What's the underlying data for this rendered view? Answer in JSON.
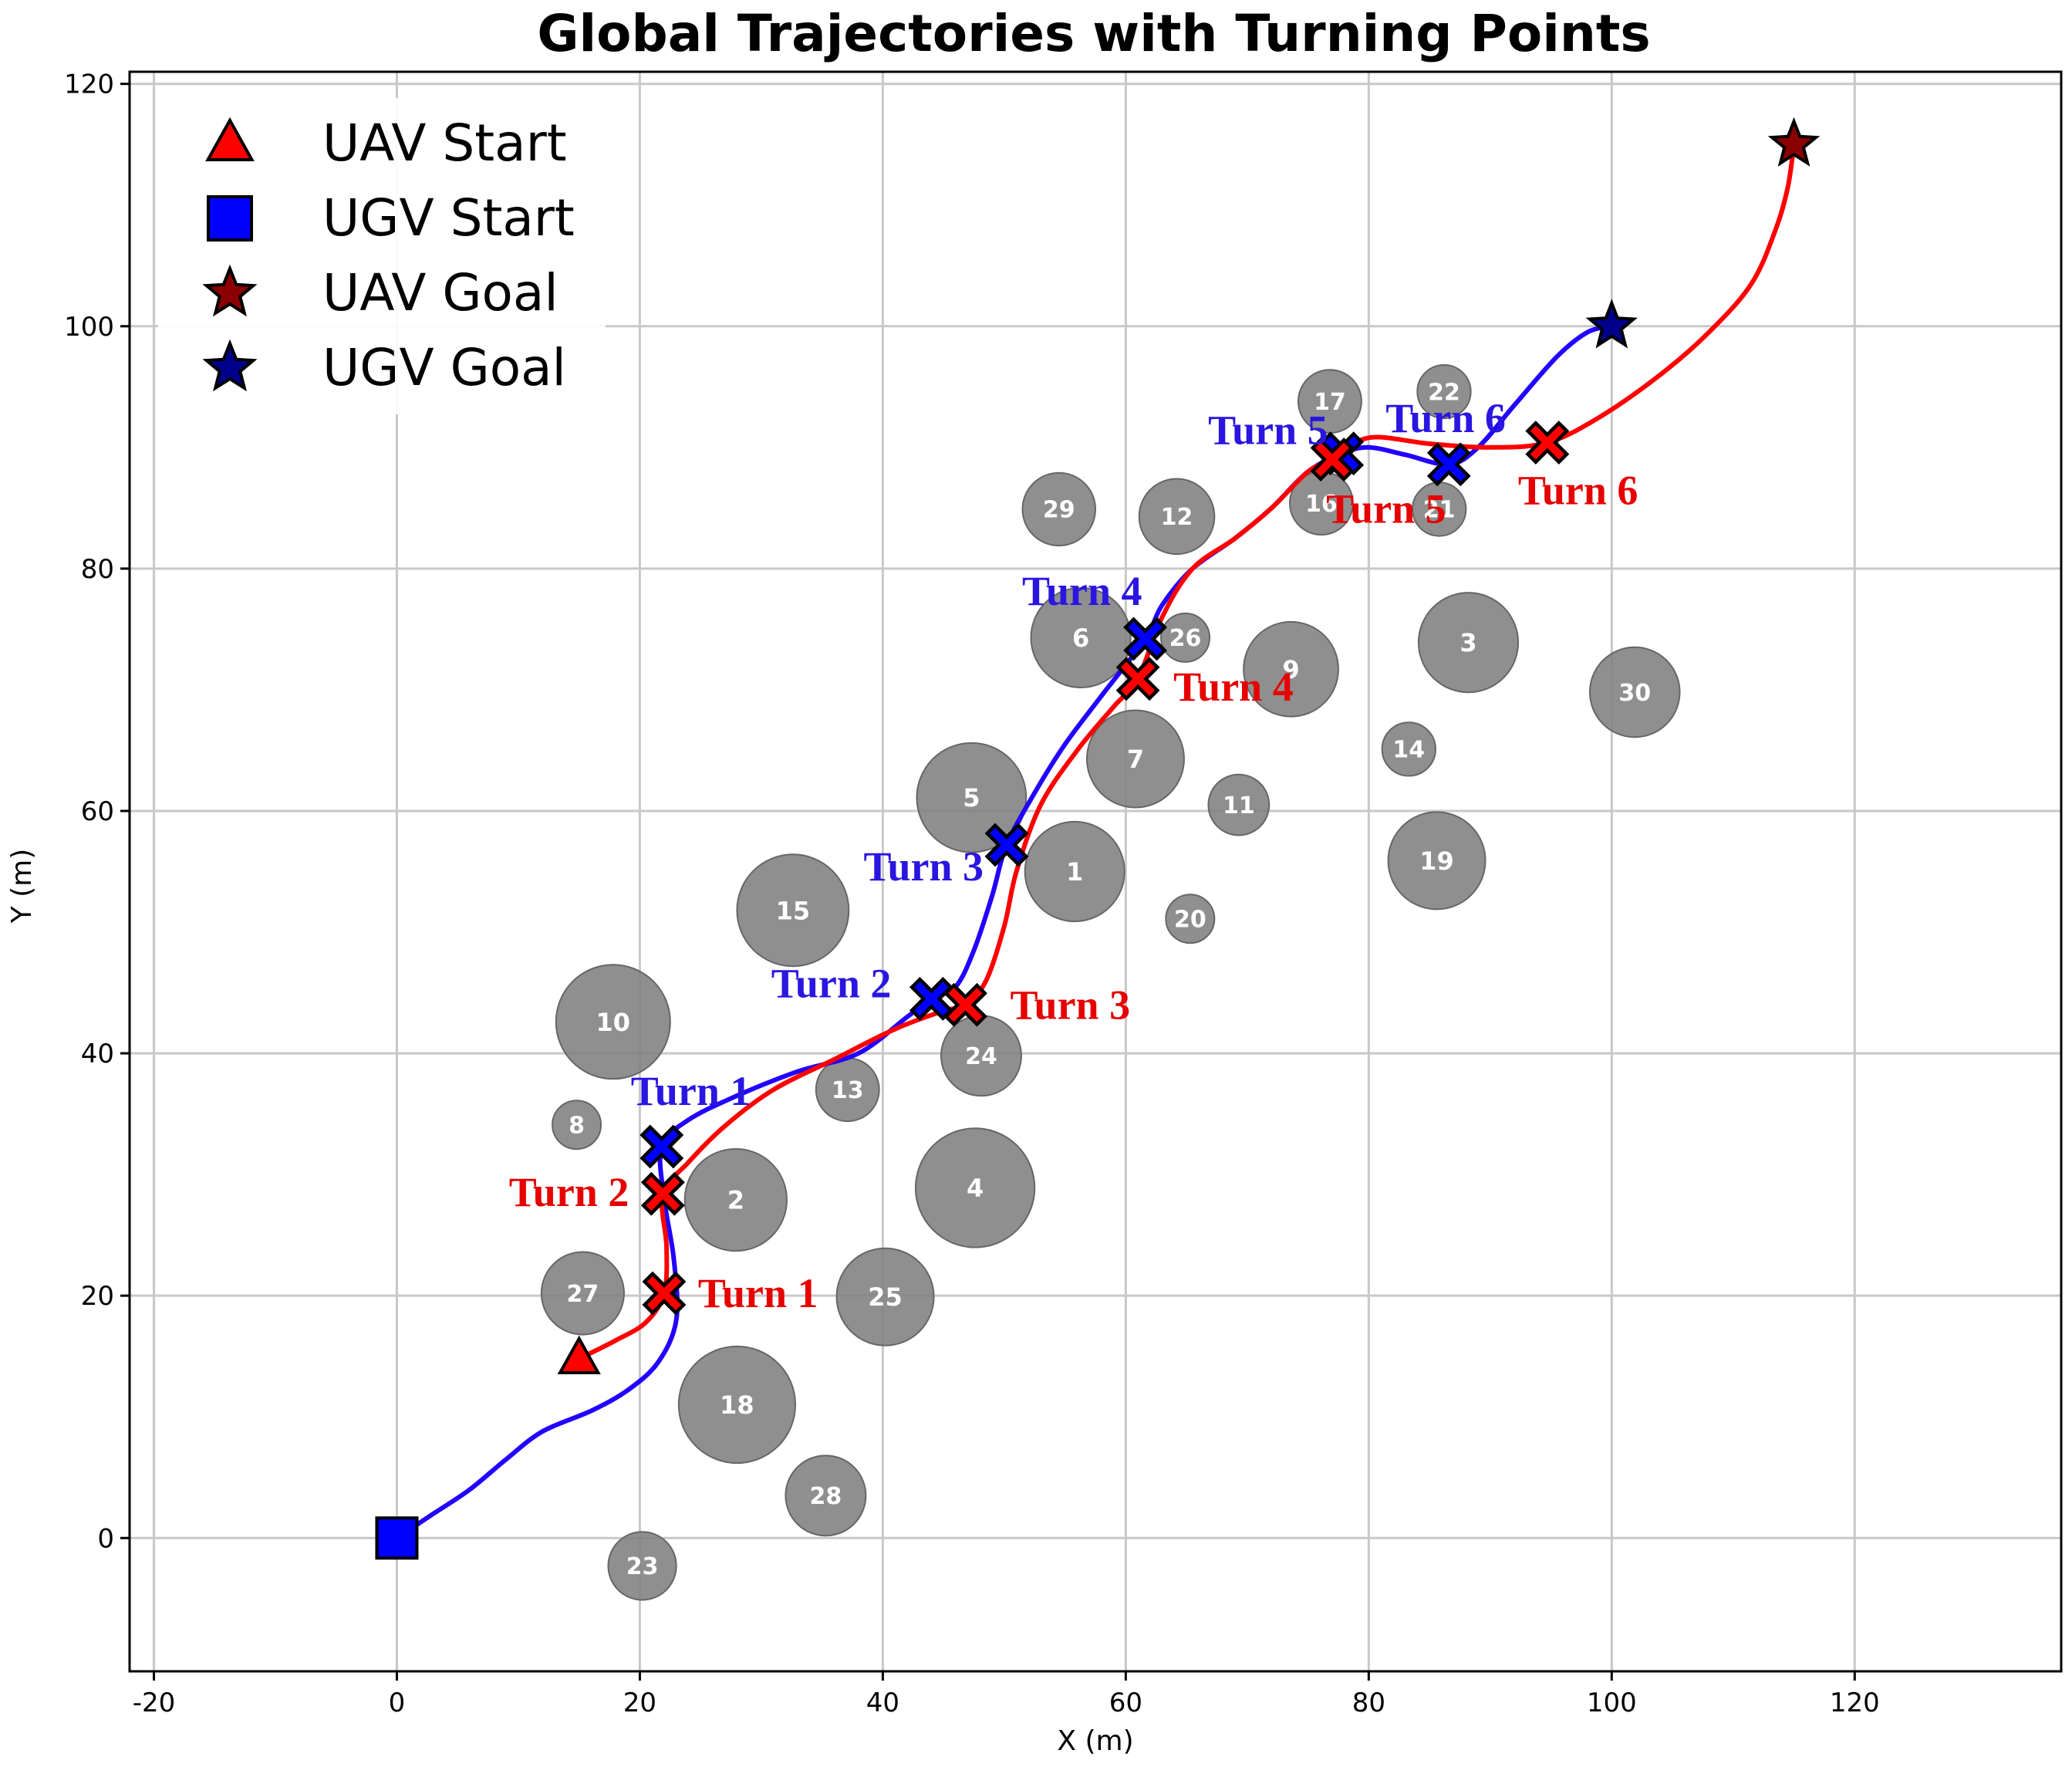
{
  "chart_data": {
    "type": "scatter",
    "title": "Global Trajectories with Turning Points",
    "xlabel": "X (m)",
    "ylabel": "Y (m)",
    "xlim": [
      -22,
      137
    ],
    "ylim": [
      -11,
      121
    ],
    "xticks": [
      -20,
      0,
      20,
      40,
      60,
      80,
      100,
      120
    ],
    "yticks": [
      0,
      20,
      40,
      60,
      80,
      100,
      120
    ],
    "grid": true,
    "legend_position": "upper-left",
    "legend": [
      {
        "label": "UAV Start",
        "marker": "triangle",
        "color": "#ff0000"
      },
      {
        "label": "UGV Start",
        "marker": "square",
        "color": "#0000ff"
      },
      {
        "label": "UAV Goal",
        "marker": "star",
        "color": "#8b0000"
      },
      {
        "label": "UGV Goal",
        "marker": "star",
        "color": "#00008b"
      }
    ],
    "colors": {
      "uav_path": "#ff0000",
      "ugv_path": "#2200ff",
      "uav_turn": "#ff0000",
      "ugv_turn": "#0000ff",
      "obstacle": "#808080",
      "uav_turn_label": "#e60000",
      "ugv_turn_label": "#2a16e0"
    },
    "obstacles": [
      {
        "id": "1",
        "x": 55.8,
        "y": 55.0,
        "r": 4.1
      },
      {
        "id": "2",
        "x": 27.9,
        "y": 27.9,
        "r": 4.2
      },
      {
        "id": "3",
        "x": 88.2,
        "y": 73.9,
        "r": 4.1
      },
      {
        "id": "4",
        "x": 47.6,
        "y": 28.9,
        "r": 4.9
      },
      {
        "id": "5",
        "x": 47.3,
        "y": 61.1,
        "r": 4.5
      },
      {
        "id": "6",
        "x": 56.3,
        "y": 74.3,
        "r": 4.1
      },
      {
        "id": "7",
        "x": 60.8,
        "y": 64.3,
        "r": 4.0
      },
      {
        "id": "8",
        "x": 14.8,
        "y": 34.1,
        "r": 2.0
      },
      {
        "id": "9",
        "x": 73.6,
        "y": 71.7,
        "r": 3.9
      },
      {
        "id": "10",
        "x": 17.8,
        "y": 42.6,
        "r": 4.7
      },
      {
        "id": "11",
        "x": 69.3,
        "y": 60.5,
        "r": 2.5
      },
      {
        "id": "12",
        "x": 64.2,
        "y": 84.3,
        "r": 3.1
      },
      {
        "id": "13",
        "x": 37.1,
        "y": 37.0,
        "r": 2.6
      },
      {
        "id": "14",
        "x": 83.3,
        "y": 65.1,
        "r": 2.2
      },
      {
        "id": "15",
        "x": 32.6,
        "y": 51.8,
        "r": 4.6
      },
      {
        "id": "16",
        "x": 76.1,
        "y": 85.4,
        "r": 2.6
      },
      {
        "id": "17",
        "x": 76.8,
        "y": 93.8,
        "r": 2.6
      },
      {
        "id": "19",
        "x": 85.6,
        "y": 55.9,
        "r": 4.0
      },
      {
        "id": "18",
        "x": 28.0,
        "y": 11.0,
        "r": 4.8
      },
      {
        "id": "20",
        "x": 65.3,
        "y": 51.1,
        "r": 2.0
      },
      {
        "id": "21",
        "x": 85.8,
        "y": 84.9,
        "r": 2.2
      },
      {
        "id": "22",
        "x": 86.2,
        "y": 94.6,
        "r": 2.2
      },
      {
        "id": "23",
        "x": 20.2,
        "y": -2.3,
        "r": 2.8
      },
      {
        "id": "24",
        "x": 48.1,
        "y": 39.8,
        "r": 3.3
      },
      {
        "id": "25",
        "x": 40.2,
        "y": 19.9,
        "r": 4.0
      },
      {
        "id": "26",
        "x": 64.9,
        "y": 74.3,
        "r": 2.0
      },
      {
        "id": "27",
        "x": 15.3,
        "y": 20.2,
        "r": 3.4
      },
      {
        "id": "28",
        "x": 35.3,
        "y": 3.5,
        "r": 3.3
      },
      {
        "id": "29",
        "x": 54.5,
        "y": 84.9,
        "r": 3.0
      },
      {
        "id": "30",
        "x": 101.9,
        "y": 69.8,
        "r": 3.7
      }
    ],
    "series": [
      {
        "name": "UAV",
        "start": {
          "x": 15.0,
          "y": 14.8
        },
        "goal": {
          "x": 115.0,
          "y": 115.0
        },
        "path": [
          [
            15.0,
            14.8
          ],
          [
            18.0,
            16.3
          ],
          [
            20.5,
            17.8
          ],
          [
            22.0,
            20.2
          ],
          [
            22.2,
            24.0
          ],
          [
            21.9,
            28.4
          ],
          [
            24.0,
            31.0
          ],
          [
            27.0,
            34.0
          ],
          [
            31.0,
            37.0
          ],
          [
            36.0,
            39.5
          ],
          [
            41.0,
            42.0
          ],
          [
            45.0,
            43.5
          ],
          [
            46.8,
            44.0
          ],
          [
            48.5,
            46.0
          ],
          [
            50.0,
            50.5
          ],
          [
            51.0,
            55.0
          ],
          [
            53.0,
            60.5
          ],
          [
            56.0,
            65.0
          ],
          [
            59.0,
            68.6
          ],
          [
            61.0,
            70.9
          ],
          [
            63.0,
            76.0
          ],
          [
            65.5,
            80.0
          ],
          [
            69.0,
            82.5
          ],
          [
            72.0,
            85.0
          ],
          [
            75.0,
            88.0
          ],
          [
            77.0,
            89.0
          ],
          [
            80.0,
            90.8
          ],
          [
            85.0,
            90.3
          ],
          [
            90.0,
            90.0
          ],
          [
            94.7,
            90.4
          ],
          [
            99.0,
            92.5
          ],
          [
            104.0,
            96.0
          ],
          [
            108.0,
            99.5
          ],
          [
            111.5,
            103.5
          ],
          [
            113.5,
            108.0
          ],
          [
            114.5,
            111.5
          ],
          [
            115.0,
            115.0
          ]
        ],
        "turns": [
          {
            "label": "Turn 1",
            "x": 22.0,
            "y": 20.2
          },
          {
            "label": "Turn 2",
            "x": 21.9,
            "y": 28.4
          },
          {
            "label": "Turn 3",
            "x": 46.8,
            "y": 44.0
          },
          {
            "label": "Turn 4",
            "x": 61.0,
            "y": 70.9
          },
          {
            "label": "Turn 5",
            "x": 77.0,
            "y": 89.0
          },
          {
            "label": "Turn 6",
            "x": 94.7,
            "y": 90.4
          }
        ]
      },
      {
        "name": "UGV",
        "start": {
          "x": 0.0,
          "y": 0.0
        },
        "goal": {
          "x": 100.0,
          "y": 100.0
        },
        "path": [
          [
            0.0,
            0.0
          ],
          [
            3.0,
            2.0
          ],
          [
            6.0,
            4.0
          ],
          [
            9.0,
            6.5
          ],
          [
            12.0,
            8.8
          ],
          [
            16.0,
            10.5
          ],
          [
            19.0,
            12.2
          ],
          [
            21.5,
            14.5
          ],
          [
            23.0,
            18.0
          ],
          [
            22.8,
            23.0
          ],
          [
            22.0,
            28.0
          ],
          [
            21.8,
            32.3
          ],
          [
            24.0,
            34.5
          ],
          [
            28.0,
            36.5
          ],
          [
            33.0,
            38.5
          ],
          [
            38.0,
            40.0
          ],
          [
            42.0,
            43.0
          ],
          [
            44.0,
            44.5
          ],
          [
            46.0,
            45.5
          ],
          [
            47.5,
            48.5
          ],
          [
            49.0,
            53.0
          ],
          [
            50.2,
            57.2
          ],
          [
            52.5,
            61.5
          ],
          [
            55.0,
            65.5
          ],
          [
            58.0,
            69.5
          ],
          [
            61.6,
            74.2
          ],
          [
            63.0,
            77.0
          ],
          [
            65.5,
            80.0
          ],
          [
            69.0,
            82.5
          ],
          [
            72.0,
            85.0
          ],
          [
            75.0,
            88.0
          ],
          [
            77.8,
            89.5
          ],
          [
            80.0,
            90.0
          ],
          [
            83.0,
            89.4
          ],
          [
            86.6,
            88.6
          ],
          [
            89.0,
            90.0
          ],
          [
            92.0,
            93.5
          ],
          [
            95.5,
            97.5
          ],
          [
            98.0,
            99.5
          ],
          [
            100.0,
            100.0
          ]
        ],
        "turns": [
          {
            "label": "Turn 1",
            "x": 21.8,
            "y": 32.3
          },
          {
            "label": "Turn 2",
            "x": 44.0,
            "y": 44.5
          },
          {
            "label": "Turn 3",
            "x": 50.2,
            "y": 57.2
          },
          {
            "label": "Turn 4",
            "x": 61.6,
            "y": 74.2
          },
          {
            "label": "Turn 5",
            "x": 77.8,
            "y": 89.5
          },
          {
            "label": "Turn 6",
            "x": 86.6,
            "y": 88.6
          }
        ]
      }
    ]
  }
}
